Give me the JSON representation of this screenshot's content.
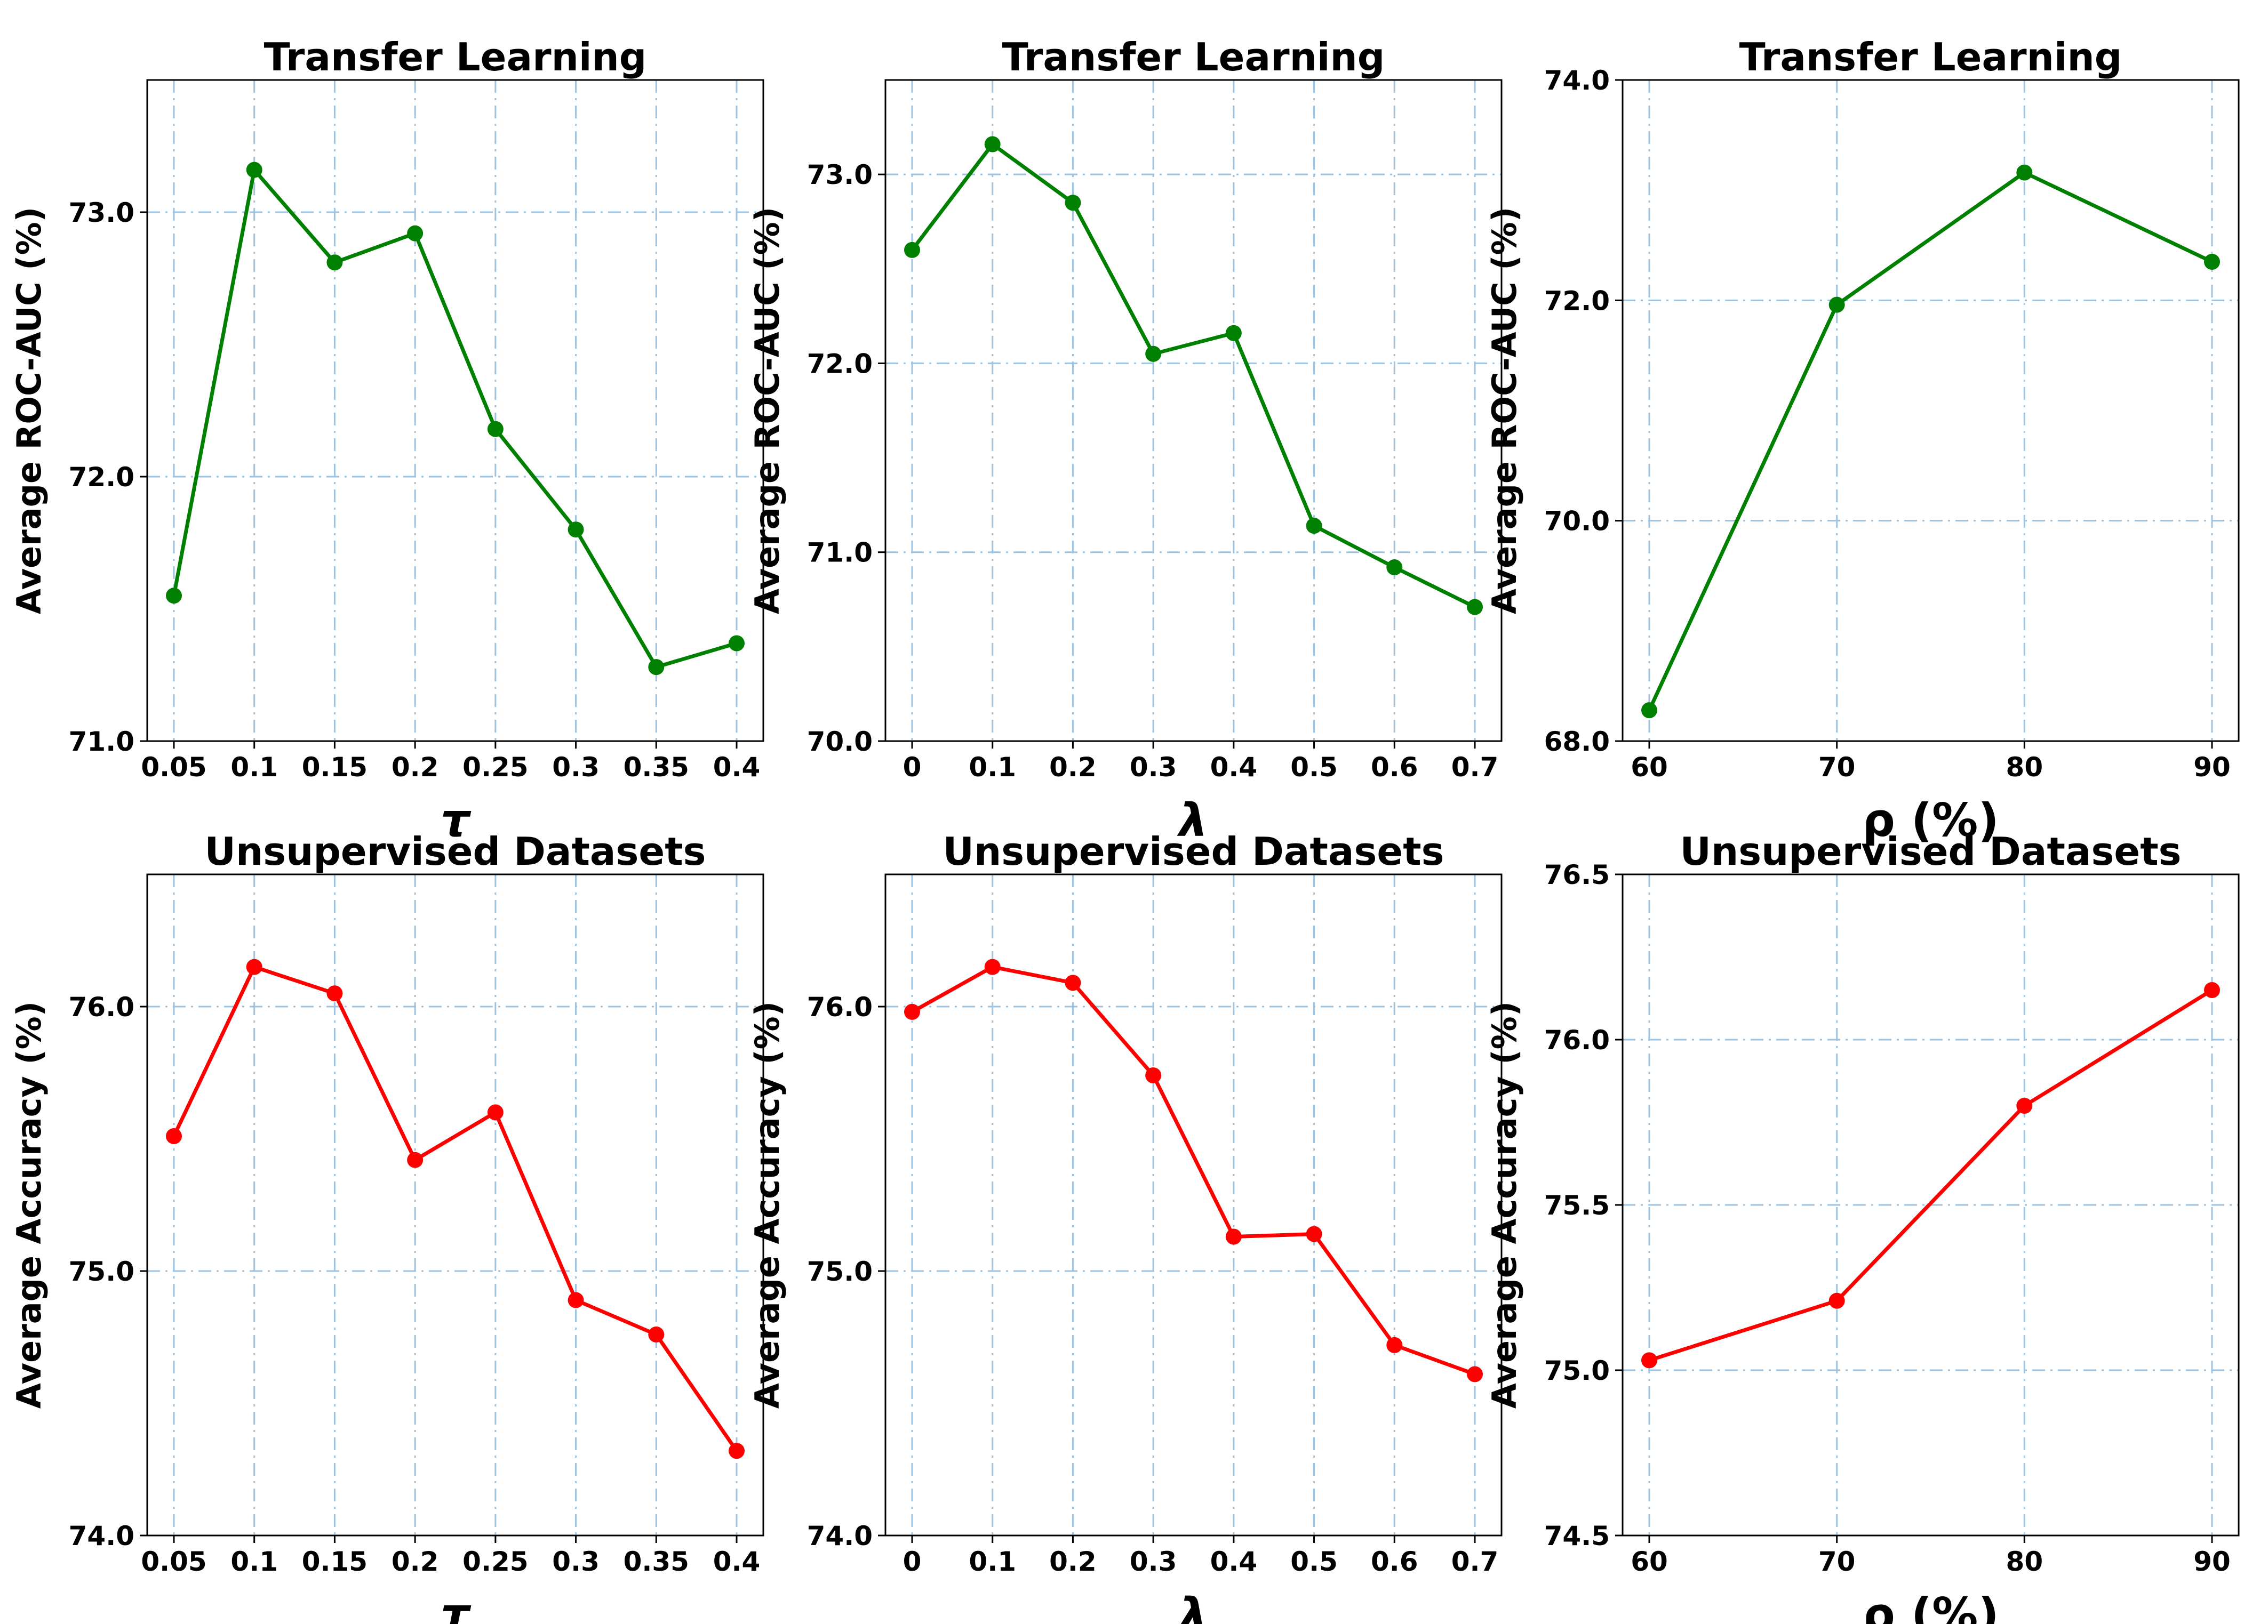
{
  "chart_data": [
    {
      "type": "line",
      "title": "Transfer Learning",
      "xlabel": "τ",
      "ylabel": "Average ROC-AUC (%)",
      "x_ticks": [
        "0.05",
        "0.1",
        "0.15",
        "0.2",
        "0.25",
        "0.3",
        "0.35",
        "0.4"
      ],
      "y_ticks": [
        "71.0",
        "72.0",
        "73.0"
      ],
      "y_tick_values": [
        71.0,
        72.0,
        73.0
      ],
      "ylim": [
        71.0,
        73.5
      ],
      "values": [
        71.55,
        73.16,
        72.81,
        72.92,
        72.18,
        71.8,
        71.28,
        71.37
      ],
      "color": "#008000",
      "grid": true
    },
    {
      "type": "line",
      "title": "Transfer Learning",
      "xlabel": "λ",
      "ylabel": "Average ROC-AUC (%)",
      "x_ticks": [
        "0",
        "0.1",
        "0.2",
        "0.3",
        "0.4",
        "0.5",
        "0.6",
        "0.7"
      ],
      "y_ticks": [
        "70.0",
        "71.0",
        "72.0",
        "73.0"
      ],
      "y_tick_values": [
        70.0,
        71.0,
        72.0,
        73.0
      ],
      "ylim": [
        70.0,
        73.5
      ],
      "values": [
        72.6,
        73.16,
        72.85,
        72.05,
        72.16,
        71.14,
        70.92,
        70.71
      ],
      "color": "#008000",
      "grid": true
    },
    {
      "type": "line",
      "title": "Transfer Learning",
      "xlabel": "ρ (%)",
      "ylabel": "Average ROC-AUC (%)",
      "x_ticks": [
        "60",
        "70",
        "80",
        "90"
      ],
      "y_ticks": [
        "68.0",
        "70.0",
        "72.0",
        "74.0"
      ],
      "y_tick_values": [
        68.0,
        70.0,
        72.0,
        74.0
      ],
      "ylim": [
        68.0,
        74.0
      ],
      "values": [
        68.28,
        71.96,
        73.16,
        72.35
      ],
      "color": "#008000",
      "grid": true
    },
    {
      "type": "line",
      "title": "Unsupervised Datasets",
      "xlabel": "τ",
      "ylabel": "Average Accuracy (%)",
      "x_ticks": [
        "0.05",
        "0.1",
        "0.15",
        "0.2",
        "0.25",
        "0.3",
        "0.35",
        "0.4"
      ],
      "y_ticks": [
        "74.0",
        "75.0",
        "76.0"
      ],
      "y_tick_values": [
        74.0,
        75.0,
        76.0
      ],
      "ylim": [
        74.0,
        76.5
      ],
      "values": [
        75.51,
        76.15,
        76.05,
        75.42,
        75.6,
        74.89,
        74.76,
        74.32
      ],
      "color": "#ff0000",
      "grid": true
    },
    {
      "type": "line",
      "title": "Unsupervised Datasets",
      "xlabel": "λ",
      "ylabel": "Average Accuracy (%)",
      "x_ticks": [
        "0",
        "0.1",
        "0.2",
        "0.3",
        "0.4",
        "0.5",
        "0.6",
        "0.7"
      ],
      "y_ticks": [
        "74.0",
        "75.0",
        "76.0"
      ],
      "y_tick_values": [
        74.0,
        75.0,
        76.0
      ],
      "ylim": [
        74.0,
        76.5
      ],
      "values": [
        75.98,
        76.15,
        76.09,
        75.74,
        75.13,
        75.14,
        74.72,
        74.61
      ],
      "color": "#ff0000",
      "grid": true
    },
    {
      "type": "line",
      "title": "Unsupervised Datasets",
      "xlabel": "ρ (%)",
      "ylabel": "Average Accuracy (%)",
      "x_ticks": [
        "60",
        "70",
        "80",
        "90"
      ],
      "y_ticks": [
        "74.5",
        "75.0",
        "75.5",
        "76.0",
        "76.5"
      ],
      "y_tick_values": [
        74.5,
        75.0,
        75.5,
        76.0,
        76.5
      ],
      "ylim": [
        74.5,
        76.5
      ],
      "values": [
        75.03,
        75.21,
        75.8,
        76.15
      ],
      "color": "#ff0000",
      "grid": true
    }
  ]
}
